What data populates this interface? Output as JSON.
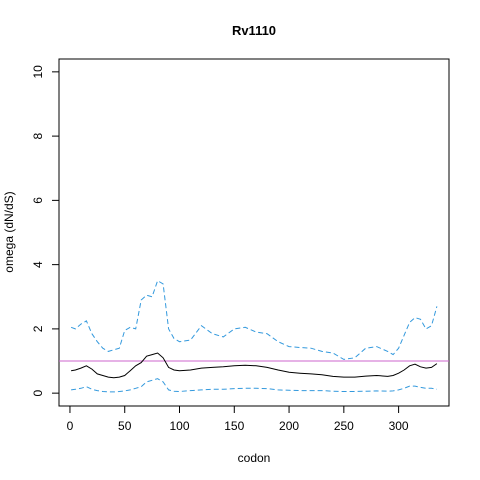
{
  "chart_data": {
    "type": "line",
    "title": "Rv1110",
    "xlabel": "codon",
    "ylabel": "omega (dN/dS)",
    "xlim": [
      -10,
      346
    ],
    "ylim": [
      -0.4,
      10.4
    ],
    "xticks": [
      0,
      50,
      100,
      150,
      200,
      250,
      300
    ],
    "yticks": [
      0,
      2,
      4,
      6,
      8,
      10
    ],
    "reference_line": {
      "y": 1,
      "color": "#cc66cc"
    },
    "series": [
      {
        "role": "estimate",
        "color": "#000000",
        "dash": "solid",
        "x": [
          1,
          5,
          10,
          15,
          20,
          25,
          30,
          35,
          40,
          45,
          50,
          55,
          60,
          65,
          70,
          75,
          80,
          85,
          90,
          95,
          100,
          110,
          120,
          130,
          140,
          150,
          160,
          170,
          180,
          190,
          200,
          210,
          220,
          230,
          240,
          250,
          260,
          270,
          280,
          290,
          295,
          300,
          305,
          310,
          315,
          320,
          325,
          330,
          335
        ],
        "y": [
          0.7,
          0.72,
          0.78,
          0.85,
          0.75,
          0.6,
          0.55,
          0.5,
          0.48,
          0.5,
          0.55,
          0.7,
          0.85,
          0.95,
          1.15,
          1.2,
          1.25,
          1.1,
          0.8,
          0.72,
          0.7,
          0.72,
          0.78,
          0.8,
          0.82,
          0.85,
          0.87,
          0.85,
          0.8,
          0.72,
          0.65,
          0.62,
          0.6,
          0.57,
          0.52,
          0.5,
          0.5,
          0.53,
          0.55,
          0.52,
          0.55,
          0.62,
          0.72,
          0.85,
          0.9,
          0.82,
          0.78,
          0.8,
          0.92
        ]
      },
      {
        "role": "upper bound",
        "color": "#3399dd",
        "dash": "dashed",
        "x": [
          1,
          5,
          10,
          15,
          20,
          25,
          30,
          35,
          40,
          45,
          50,
          55,
          60,
          65,
          70,
          75,
          80,
          85,
          90,
          95,
          100,
          110,
          120,
          130,
          140,
          150,
          160,
          170,
          180,
          190,
          200,
          210,
          220,
          230,
          240,
          250,
          260,
          270,
          280,
          290,
          295,
          300,
          305,
          310,
          315,
          320,
          325,
          330,
          335
        ],
        "y": [
          2.05,
          2.0,
          2.15,
          2.25,
          1.85,
          1.6,
          1.4,
          1.3,
          1.35,
          1.4,
          1.95,
          2.05,
          2.0,
          2.9,
          3.05,
          3.0,
          3.5,
          3.4,
          2.0,
          1.7,
          1.6,
          1.65,
          2.1,
          1.85,
          1.75,
          2.0,
          2.05,
          1.9,
          1.85,
          1.6,
          1.45,
          1.42,
          1.4,
          1.3,
          1.25,
          1.05,
          1.1,
          1.4,
          1.45,
          1.3,
          1.2,
          1.4,
          1.8,
          2.2,
          2.35,
          2.3,
          2.0,
          2.1,
          2.7
        ]
      },
      {
        "role": "lower bound",
        "color": "#3399dd",
        "dash": "dashed",
        "x": [
          1,
          5,
          10,
          15,
          20,
          25,
          30,
          35,
          40,
          45,
          50,
          55,
          60,
          65,
          70,
          75,
          80,
          85,
          90,
          95,
          100,
          110,
          120,
          130,
          140,
          150,
          160,
          170,
          180,
          190,
          200,
          210,
          220,
          230,
          240,
          250,
          260,
          270,
          280,
          290,
          295,
          300,
          305,
          310,
          315,
          320,
          325,
          330,
          335
        ],
        "y": [
          0.1,
          0.12,
          0.15,
          0.2,
          0.12,
          0.08,
          0.05,
          0.04,
          0.04,
          0.05,
          0.07,
          0.1,
          0.15,
          0.2,
          0.35,
          0.4,
          0.45,
          0.35,
          0.1,
          0.06,
          0.05,
          0.08,
          0.1,
          0.12,
          0.12,
          0.14,
          0.15,
          0.15,
          0.14,
          0.1,
          0.09,
          0.08,
          0.08,
          0.08,
          0.06,
          0.05,
          0.05,
          0.06,
          0.07,
          0.06,
          0.07,
          0.1,
          0.15,
          0.22,
          0.22,
          0.18,
          0.15,
          0.15,
          0.12
        ]
      }
    ],
    "grid": false,
    "legend": "none"
  }
}
